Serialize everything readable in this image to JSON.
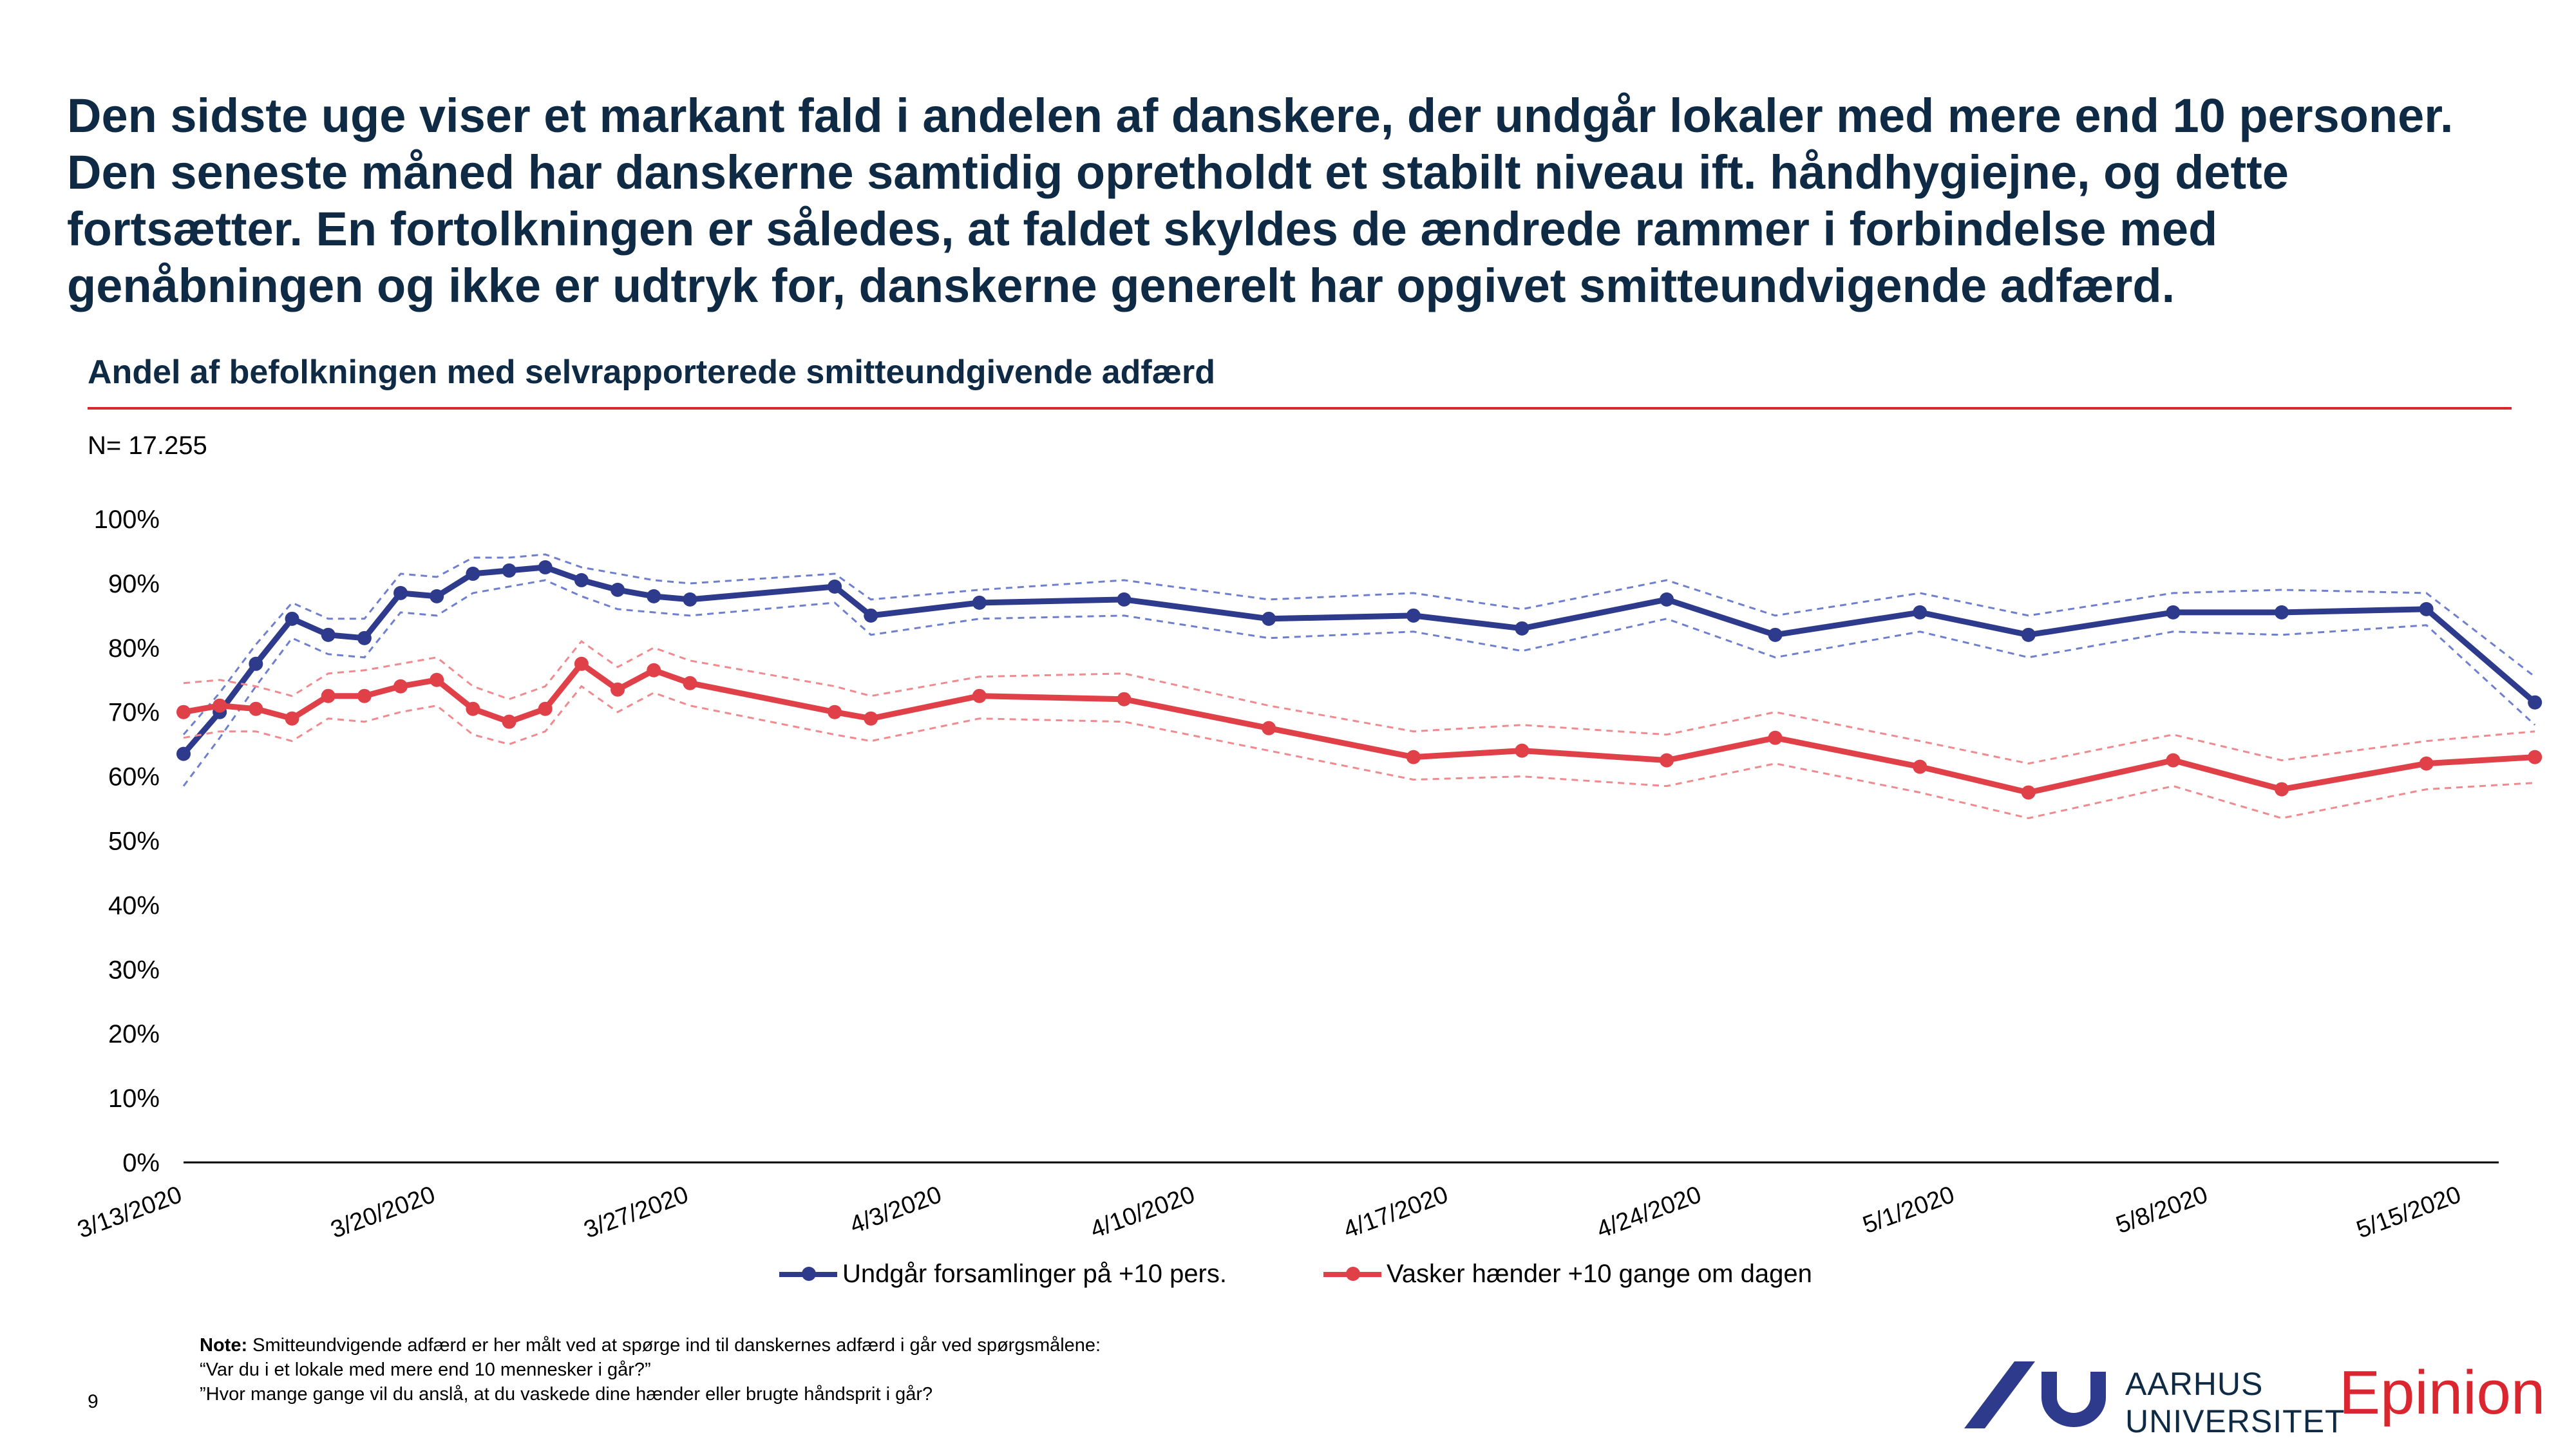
{
  "headline": "Den sidste uge viser et markant fald i andelen af danskere, der undgår lokaler med mere end 10 personer. Den seneste måned har danskerne samtidig opretholdt et stabilt niveau ift. håndhygiejne, og dette fortsætter. En fortolkningen er således, at faldet skyldes de ændrede rammer i forbindelse med genåbningen og ikke er udtryk for, danskerne generelt har opgivet smitteundvigende adfærd.",
  "subtitle": "Andel af befolkningen med selvrapporterede smitteundgivende adfærd",
  "n_label": "N= 17.255",
  "note": {
    "label": "Note:",
    "line1": " Smitteundvigende adfærd er her målt ved at spørge ind til danskernes adfærd i går ved spørgsmålene:",
    "line2": "“Var du i et lokale med mere end 10 mennesker i går?”",
    "line3": "”Hvor mange gange vil du anslå, at du vaskede dine hænder eller brugte håndsprit i går?"
  },
  "page_number": "9",
  "logos": {
    "au_line1": "AARHUS",
    "au_line2": "UNIVERSITET",
    "epinion": "Epinion"
  },
  "colors": {
    "blue": "#2e3a8c",
    "red": "#e04148",
    "blue_band": "#6f7fd0",
    "red_band": "#f08a8e"
  },
  "chart_data": {
    "type": "line",
    "ylim": [
      0,
      100
    ],
    "yticks": [
      "0%",
      "10%",
      "20%",
      "30%",
      "40%",
      "50%",
      "60%",
      "70%",
      "80%",
      "90%",
      "100%"
    ],
    "x_range": [
      "3/13/2020",
      "5/16/2020"
    ],
    "xticks": [
      "3/13/2020",
      "3/20/2020",
      "3/27/2020",
      "4/3/2020",
      "4/10/2020",
      "4/17/2020",
      "4/24/2020",
      "5/1/2020",
      "5/8/2020",
      "5/15/2020"
    ],
    "legend_position": "bottom",
    "grid": false,
    "series": [
      {
        "name": "Undgår forsamlinger på +10 pers.",
        "color": "#2e3a8c",
        "points": [
          [
            "3/13/2020",
            63.5
          ],
          [
            "3/14/2020",
            70
          ],
          [
            "3/15/2020",
            77.5
          ],
          [
            "3/16/2020",
            84.5
          ],
          [
            "3/17/2020",
            82
          ],
          [
            "3/18/2020",
            81.5
          ],
          [
            "3/19/2020",
            88.5
          ],
          [
            "3/20/2020",
            88
          ],
          [
            "3/21/2020",
            91.5
          ],
          [
            "3/22/2020",
            92
          ],
          [
            "3/23/2020",
            92.5
          ],
          [
            "3/24/2020",
            90.5
          ],
          [
            "3/25/2020",
            89
          ],
          [
            "3/26/2020",
            88
          ],
          [
            "3/27/2020",
            87.5
          ],
          [
            "3/31/2020",
            89.5
          ],
          [
            "4/1/2020",
            85
          ],
          [
            "4/4/2020",
            87
          ],
          [
            "4/8/2020",
            87.5
          ],
          [
            "4/12/2020",
            84.5
          ],
          [
            "4/16/2020",
            85
          ],
          [
            "4/19/2020",
            83
          ],
          [
            "4/23/2020",
            87.5
          ],
          [
            "4/26/2020",
            82
          ],
          [
            "4/30/2020",
            85.5
          ],
          [
            "5/3/2020",
            82
          ],
          [
            "5/7/2020",
            85.5
          ],
          [
            "5/10/2020",
            85.5
          ],
          [
            "5/14/2020",
            86
          ],
          [
            "5/17/2020",
            71.5
          ]
        ],
        "upper": [
          [
            "3/13/2020",
            66.5
          ],
          [
            "3/14/2020",
            73
          ],
          [
            "3/15/2020",
            80.5
          ],
          [
            "3/16/2020",
            87
          ],
          [
            "3/17/2020",
            84.5
          ],
          [
            "3/18/2020",
            84.5
          ],
          [
            "3/19/2020",
            91.5
          ],
          [
            "3/20/2020",
            91
          ],
          [
            "3/21/2020",
            94
          ],
          [
            "3/22/2020",
            94
          ],
          [
            "3/23/2020",
            94.5
          ],
          [
            "3/24/2020",
            92.5
          ],
          [
            "3/25/2020",
            91.5
          ],
          [
            "3/26/2020",
            90.5
          ],
          [
            "3/27/2020",
            90
          ],
          [
            "3/31/2020",
            91.5
          ],
          [
            "4/1/2020",
            87.5
          ],
          [
            "4/4/2020",
            89
          ],
          [
            "4/8/2020",
            90.5
          ],
          [
            "4/12/2020",
            87.5
          ],
          [
            "4/16/2020",
            88.5
          ],
          [
            "4/19/2020",
            86
          ],
          [
            "4/23/2020",
            90.5
          ],
          [
            "4/26/2020",
            85
          ],
          [
            "4/30/2020",
            88.5
          ],
          [
            "5/3/2020",
            85
          ],
          [
            "5/7/2020",
            88.5
          ],
          [
            "5/10/2020",
            89
          ],
          [
            "5/14/2020",
            88.5
          ],
          [
            "5/17/2020",
            75.5
          ]
        ],
        "lower": [
          [
            "3/13/2020",
            58.5
          ],
          [
            "3/14/2020",
            66
          ],
          [
            "3/15/2020",
            74
          ],
          [
            "3/16/2020",
            81.5
          ],
          [
            "3/17/2020",
            79
          ],
          [
            "3/18/2020",
            78.5
          ],
          [
            "3/19/2020",
            85.5
          ],
          [
            "3/20/2020",
            85
          ],
          [
            "3/21/2020",
            88.5
          ],
          [
            "3/22/2020",
            89.5
          ],
          [
            "3/23/2020",
            90.5
          ],
          [
            "3/24/2020",
            88
          ],
          [
            "3/25/2020",
            86
          ],
          [
            "3/26/2020",
            85.5
          ],
          [
            "3/27/2020",
            85
          ],
          [
            "3/31/2020",
            87
          ],
          [
            "4/1/2020",
            82
          ],
          [
            "4/4/2020",
            84.5
          ],
          [
            "4/8/2020",
            85
          ],
          [
            "4/12/2020",
            81.5
          ],
          [
            "4/16/2020",
            82.5
          ],
          [
            "4/19/2020",
            79.5
          ],
          [
            "4/23/2020",
            84.5
          ],
          [
            "4/26/2020",
            78.5
          ],
          [
            "4/30/2020",
            82.5
          ],
          [
            "5/3/2020",
            78.5
          ],
          [
            "5/7/2020",
            82.5
          ],
          [
            "5/10/2020",
            82
          ],
          [
            "5/14/2020",
            83.5
          ],
          [
            "5/17/2020",
            68
          ]
        ]
      },
      {
        "name": "Vasker hænder +10 gange om dagen",
        "color": "#e04148",
        "points": [
          [
            "3/13/2020",
            70
          ],
          [
            "3/14/2020",
            71
          ],
          [
            "3/15/2020",
            70.5
          ],
          [
            "3/16/2020",
            69
          ],
          [
            "3/17/2020",
            72.5
          ],
          [
            "3/18/2020",
            72.5
          ],
          [
            "3/19/2020",
            74
          ],
          [
            "3/20/2020",
            75
          ],
          [
            "3/21/2020",
            70.5
          ],
          [
            "3/22/2020",
            68.5
          ],
          [
            "3/23/2020",
            70.5
          ],
          [
            "3/24/2020",
            77.5
          ],
          [
            "3/25/2020",
            73.5
          ],
          [
            "3/26/2020",
            76.5
          ],
          [
            "3/27/2020",
            74.5
          ],
          [
            "3/31/2020",
            70
          ],
          [
            "4/1/2020",
            69
          ],
          [
            "4/4/2020",
            72.5
          ],
          [
            "4/8/2020",
            72
          ],
          [
            "4/12/2020",
            67.5
          ],
          [
            "4/16/2020",
            63
          ],
          [
            "4/19/2020",
            64
          ],
          [
            "4/23/2020",
            62.5
          ],
          [
            "4/26/2020",
            66
          ],
          [
            "4/30/2020",
            61.5
          ],
          [
            "5/3/2020",
            57.5
          ],
          [
            "5/7/2020",
            62.5
          ],
          [
            "5/10/2020",
            58
          ],
          [
            "5/14/2020",
            62
          ],
          [
            "5/17/2020",
            63
          ]
        ],
        "upper": [
          [
            "3/13/2020",
            74.5
          ],
          [
            "3/14/2020",
            75
          ],
          [
            "3/15/2020",
            74
          ],
          [
            "3/16/2020",
            72.5
          ],
          [
            "3/17/2020",
            76
          ],
          [
            "3/18/2020",
            76.5
          ],
          [
            "3/19/2020",
            77.5
          ],
          [
            "3/20/2020",
            78.5
          ],
          [
            "3/21/2020",
            74
          ],
          [
            "3/22/2020",
            72
          ],
          [
            "3/23/2020",
            74
          ],
          [
            "3/24/2020",
            81
          ],
          [
            "3/25/2020",
            77
          ],
          [
            "3/26/2020",
            80
          ],
          [
            "3/27/2020",
            78
          ],
          [
            "3/31/2020",
            74
          ],
          [
            "4/1/2020",
            72.5
          ],
          [
            "4/4/2020",
            75.5
          ],
          [
            "4/8/2020",
            76
          ],
          [
            "4/12/2020",
            71
          ],
          [
            "4/16/2020",
            67
          ],
          [
            "4/19/2020",
            68
          ],
          [
            "4/23/2020",
            66.5
          ],
          [
            "4/26/2020",
            70
          ],
          [
            "4/30/2020",
            65.5
          ],
          [
            "5/3/2020",
            62
          ],
          [
            "5/7/2020",
            66.5
          ],
          [
            "5/10/2020",
            62.5
          ],
          [
            "5/14/2020",
            65.5
          ],
          [
            "5/17/2020",
            67
          ]
        ],
        "lower": [
          [
            "3/13/2020",
            66
          ],
          [
            "3/14/2020",
            67
          ],
          [
            "3/15/2020",
            67
          ],
          [
            "3/16/2020",
            65.5
          ],
          [
            "3/17/2020",
            69
          ],
          [
            "3/18/2020",
            68.5
          ],
          [
            "3/19/2020",
            70
          ],
          [
            "3/20/2020",
            71
          ],
          [
            "3/21/2020",
            66.5
          ],
          [
            "3/22/2020",
            65
          ],
          [
            "3/23/2020",
            67
          ],
          [
            "3/24/2020",
            74
          ],
          [
            "3/25/2020",
            70
          ],
          [
            "3/26/2020",
            73
          ],
          [
            "3/27/2020",
            71
          ],
          [
            "3/31/2020",
            66.5
          ],
          [
            "4/1/2020",
            65.5
          ],
          [
            "4/4/2020",
            69
          ],
          [
            "4/8/2020",
            68.5
          ],
          [
            "4/12/2020",
            64
          ],
          [
            "4/16/2020",
            59.5
          ],
          [
            "4/19/2020",
            60
          ],
          [
            "4/23/2020",
            58.5
          ],
          [
            "4/26/2020",
            62
          ],
          [
            "4/30/2020",
            57.5
          ],
          [
            "5/3/2020",
            53.5
          ],
          [
            "5/7/2020",
            58.5
          ],
          [
            "5/10/2020",
            53.5
          ],
          [
            "5/14/2020",
            58
          ],
          [
            "5/17/2020",
            59
          ]
        ]
      }
    ]
  }
}
